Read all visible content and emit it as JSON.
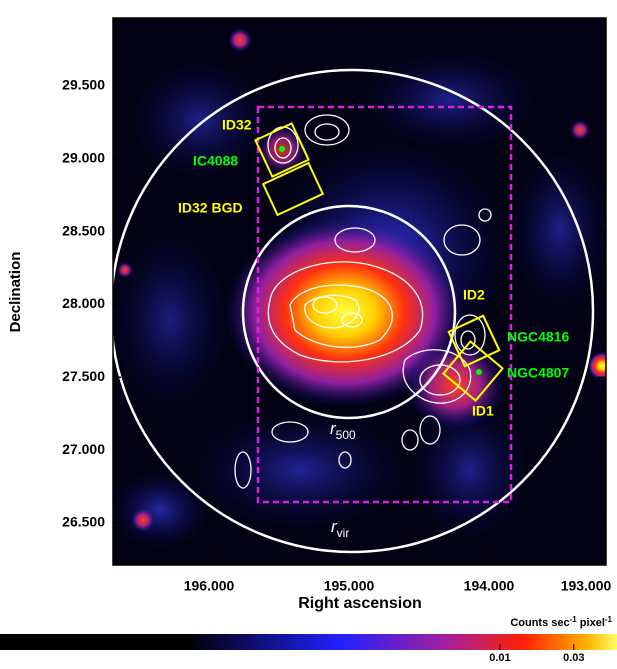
{
  "chart_data": {
    "type": "image",
    "xlabel": "Right ascension",
    "ylabel": "Declination",
    "xlim": [
      196.686,
      193.164
    ],
    "ylim": [
      26.211,
      29.967
    ],
    "xticks": [
      {
        "value": 196,
        "label": "196.000"
      },
      {
        "value": 195,
        "label": "195.000"
      },
      {
        "value": 194,
        "label": "194.000"
      },
      {
        "value": 193,
        "label": "193.000"
      }
    ],
    "yticks": [
      {
        "value": 26.5,
        "label": "26.500"
      },
      {
        "value": 27,
        "label": "27.000"
      },
      {
        "value": 27.5,
        "label": "27.500"
      },
      {
        "value": 28,
        "label": "28.000"
      },
      {
        "value": 28.5,
        "label": "28.500"
      },
      {
        "value": 29,
        "label": "29.000"
      },
      {
        "value": 29.5,
        "label": "29.500"
      }
    ],
    "annotations": [
      {
        "text": "ID32",
        "color": "#ffff00"
      },
      {
        "text": "IC4088",
        "color": "#00ff00"
      },
      {
        "text": "ID32 BGD",
        "color": "#ffff00"
      },
      {
        "text": "ID2",
        "color": "#ffff00"
      },
      {
        "text": "NGC4816",
        "color": "#00ff00"
      },
      {
        "text": "NGC4807",
        "color": "#00ff00"
      },
      {
        "text": "ID1",
        "color": "#ffff00"
      }
    ],
    "radius_labels": [
      {
        "main": "r",
        "sub": "500"
      },
      {
        "main": "r",
        "sub": "vir"
      }
    ],
    "colorbar": {
      "label": [
        "Counts sec",
        "-1",
        " pixel",
        "-1"
      ],
      "scale": "log",
      "lim": [
        5.9e-06,
        0.057
      ],
      "ticks": [
        0.01,
        0.03
      ]
    }
  }
}
